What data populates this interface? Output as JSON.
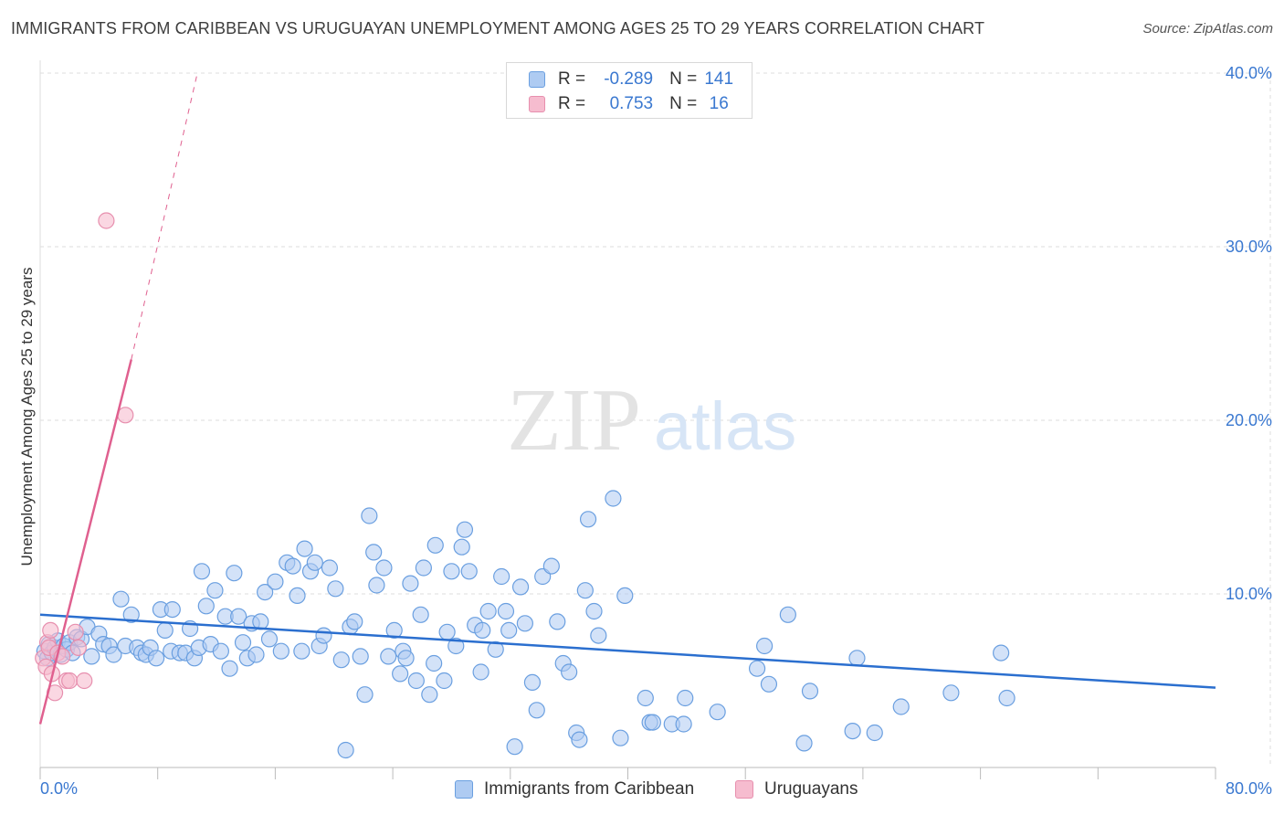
{
  "title": "IMMIGRANTS FROM CARIBBEAN VS URUGUAYAN UNEMPLOYMENT AMONG AGES 25 TO 29 YEARS CORRELATION CHART",
  "source": "Source: ZipAtlas.com",
  "watermark": {
    "zip": "ZIP",
    "atlas": "atlas"
  },
  "legend": {
    "rows": [
      {
        "r_label": "R =",
        "r_value": "-0.289",
        "n_label": "N =",
        "n_value": "141"
      },
      {
        "r_label": "R =",
        "r_value": "0.753",
        "n_label": "N =",
        "n_value": "16"
      }
    ]
  },
  "bottom_legend": {
    "items": [
      {
        "label": "Immigrants from Caribbean"
      },
      {
        "label": "Uruguayans"
      }
    ]
  },
  "colors": {
    "blue_fill": "#aecbf2",
    "blue_stroke": "#6a9fe0",
    "blue_line": "#2b6fcf",
    "pink_fill": "#f6bccf",
    "pink_stroke": "#e78fae",
    "pink_line": "#e0608f",
    "axis_text": "#3a78d0",
    "grid": "#dedede"
  },
  "chart_data": {
    "type": "scatter",
    "title": "IMMIGRANTS FROM CARIBBEAN VS URUGUAYAN UNEMPLOYMENT AMONG AGES 25 TO 29 YEARS CORRELATION CHART",
    "xlabel": "",
    "ylabel": "Unemployment Among Ages 25 to 29 years",
    "xlim": [
      0,
      80
    ],
    "ylim": [
      0,
      40
    ],
    "x_tick_labels": [
      "0.0%",
      "80.0%"
    ],
    "y_tick_labels": [
      "10.0%",
      "20.0%",
      "30.0%",
      "40.0%"
    ],
    "y_ticks": [
      10,
      20,
      30,
      40
    ],
    "grid": true,
    "series": [
      {
        "name": "Immigrants from Caribbean",
        "color": "#aecbf2",
        "points": [
          [
            0.3,
            6.7
          ],
          [
            0.5,
            6.3
          ],
          [
            0.6,
            7.1
          ],
          [
            0.8,
            6.6
          ],
          [
            1.0,
            6.9
          ],
          [
            1.2,
            7.3
          ],
          [
            1.4,
            6.5
          ],
          [
            1.6,
            7.0
          ],
          [
            1.8,
            6.8
          ],
          [
            2.0,
            7.2
          ],
          [
            2.2,
            6.6
          ],
          [
            2.5,
            7.5
          ],
          [
            2.8,
            7.4
          ],
          [
            3.2,
            8.1
          ],
          [
            3.5,
            6.4
          ],
          [
            4.0,
            7.7
          ],
          [
            4.3,
            7.1
          ],
          [
            4.7,
            7.0
          ],
          [
            5.0,
            6.5
          ],
          [
            5.5,
            9.7
          ],
          [
            5.8,
            7.0
          ],
          [
            6.2,
            8.8
          ],
          [
            6.6,
            6.9
          ],
          [
            6.9,
            6.6
          ],
          [
            7.2,
            6.5
          ],
          [
            7.5,
            6.9
          ],
          [
            7.9,
            6.3
          ],
          [
            8.2,
            9.1
          ],
          [
            8.5,
            7.9
          ],
          [
            8.9,
            6.7
          ],
          [
            9.0,
            9.1
          ],
          [
            9.5,
            6.6
          ],
          [
            9.9,
            6.6
          ],
          [
            10.2,
            8.0
          ],
          [
            10.5,
            6.3
          ],
          [
            10.8,
            6.9
          ],
          [
            11.0,
            11.3
          ],
          [
            11.3,
            9.3
          ],
          [
            11.6,
            7.1
          ],
          [
            11.9,
            10.2
          ],
          [
            12.3,
            6.7
          ],
          [
            12.6,
            8.7
          ],
          [
            12.9,
            5.7
          ],
          [
            13.2,
            11.2
          ],
          [
            13.5,
            8.7
          ],
          [
            13.8,
            7.2
          ],
          [
            14.1,
            6.3
          ],
          [
            14.4,
            8.3
          ],
          [
            14.7,
            6.5
          ],
          [
            15.0,
            8.4
          ],
          [
            15.3,
            10.1
          ],
          [
            15.6,
            7.4
          ],
          [
            16.0,
            10.7
          ],
          [
            16.4,
            6.7
          ],
          [
            16.8,
            11.8
          ],
          [
            17.2,
            11.6
          ],
          [
            17.5,
            9.9
          ],
          [
            17.8,
            6.7
          ],
          [
            18.0,
            12.6
          ],
          [
            18.4,
            11.3
          ],
          [
            18.7,
            11.8
          ],
          [
            19.0,
            7.0
          ],
          [
            19.3,
            7.6
          ],
          [
            19.7,
            11.5
          ],
          [
            20.1,
            10.3
          ],
          [
            20.5,
            6.2
          ],
          [
            20.8,
            1.0
          ],
          [
            21.1,
            8.1
          ],
          [
            21.4,
            8.4
          ],
          [
            21.8,
            6.4
          ],
          [
            22.1,
            4.2
          ],
          [
            22.4,
            14.5
          ],
          [
            22.7,
            12.4
          ],
          [
            22.9,
            10.5
          ],
          [
            23.4,
            11.5
          ],
          [
            23.7,
            6.4
          ],
          [
            24.1,
            7.9
          ],
          [
            24.5,
            5.4
          ],
          [
            24.7,
            6.7
          ],
          [
            24.9,
            6.3
          ],
          [
            25.2,
            10.6
          ],
          [
            25.6,
            5.0
          ],
          [
            25.9,
            8.8
          ],
          [
            26.1,
            11.5
          ],
          [
            26.5,
            4.2
          ],
          [
            26.8,
            6.0
          ],
          [
            26.9,
            12.8
          ],
          [
            27.5,
            5.0
          ],
          [
            27.7,
            7.8
          ],
          [
            28.0,
            11.3
          ],
          [
            28.3,
            7.0
          ],
          [
            28.7,
            12.7
          ],
          [
            28.9,
            13.7
          ],
          [
            29.2,
            11.3
          ],
          [
            29.6,
            8.2
          ],
          [
            30.0,
            5.5
          ],
          [
            30.1,
            7.9
          ],
          [
            30.5,
            9.0
          ],
          [
            31.0,
            6.8
          ],
          [
            31.4,
            11.0
          ],
          [
            31.7,
            9.0
          ],
          [
            31.9,
            7.9
          ],
          [
            32.3,
            1.2
          ],
          [
            32.7,
            10.4
          ],
          [
            33.0,
            8.3
          ],
          [
            33.5,
            4.9
          ],
          [
            33.8,
            3.3
          ],
          [
            34.2,
            11.0
          ],
          [
            34.8,
            11.6
          ],
          [
            35.2,
            8.4
          ],
          [
            35.6,
            6.0
          ],
          [
            36.0,
            5.5
          ],
          [
            36.5,
            2.0
          ],
          [
            36.7,
            1.6
          ],
          [
            37.1,
            10.2
          ],
          [
            37.3,
            14.3
          ],
          [
            37.7,
            9.0
          ],
          [
            38.0,
            7.6
          ],
          [
            39.0,
            15.5
          ],
          [
            39.5,
            1.7
          ],
          [
            39.8,
            9.9
          ],
          [
            41.2,
            4.0
          ],
          [
            41.5,
            2.6
          ],
          [
            41.7,
            2.6
          ],
          [
            43.0,
            2.5
          ],
          [
            43.9,
            4.0
          ],
          [
            43.8,
            2.5
          ],
          [
            46.1,
            3.2
          ],
          [
            48.8,
            5.7
          ],
          [
            49.3,
            7.0
          ],
          [
            49.6,
            4.8
          ],
          [
            50.9,
            8.8
          ],
          [
            52.0,
            1.4
          ],
          [
            52.4,
            4.4
          ],
          [
            55.3,
            2.1
          ],
          [
            55.6,
            6.3
          ],
          [
            56.8,
            2.0
          ],
          [
            58.6,
            3.5
          ],
          [
            62.0,
            4.3
          ],
          [
            65.4,
            6.6
          ],
          [
            65.8,
            4.0
          ]
        ]
      },
      {
        "name": "Uruguayans",
        "color": "#f6bccf",
        "points": [
          [
            0.2,
            6.3
          ],
          [
            0.4,
            5.8
          ],
          [
            0.5,
            7.2
          ],
          [
            0.6,
            6.9
          ],
          [
            0.7,
            7.9
          ],
          [
            0.8,
            5.4
          ],
          [
            1.0,
            4.3
          ],
          [
            1.2,
            6.6
          ],
          [
            1.5,
            6.4
          ],
          [
            1.8,
            5.0
          ],
          [
            2.0,
            5.0
          ],
          [
            2.4,
            7.8
          ],
          [
            2.6,
            6.9
          ],
          [
            3.0,
            5.0
          ],
          [
            4.5,
            31.5
          ],
          [
            5.8,
            20.3
          ]
        ]
      }
    ],
    "trend_lines": [
      {
        "series": "Immigrants from Caribbean",
        "x": [
          0,
          80
        ],
        "y": [
          8.8,
          4.6
        ],
        "style": "solid"
      },
      {
        "series": "Uruguayans",
        "x": [
          0,
          6.2
        ],
        "y": [
          2.5,
          23.5
        ],
        "style": "solid"
      },
      {
        "series": "Uruguayans",
        "x": [
          6.2,
          10.7
        ],
        "y": [
          23.5,
          40.0
        ],
        "style": "dashed"
      }
    ]
  }
}
